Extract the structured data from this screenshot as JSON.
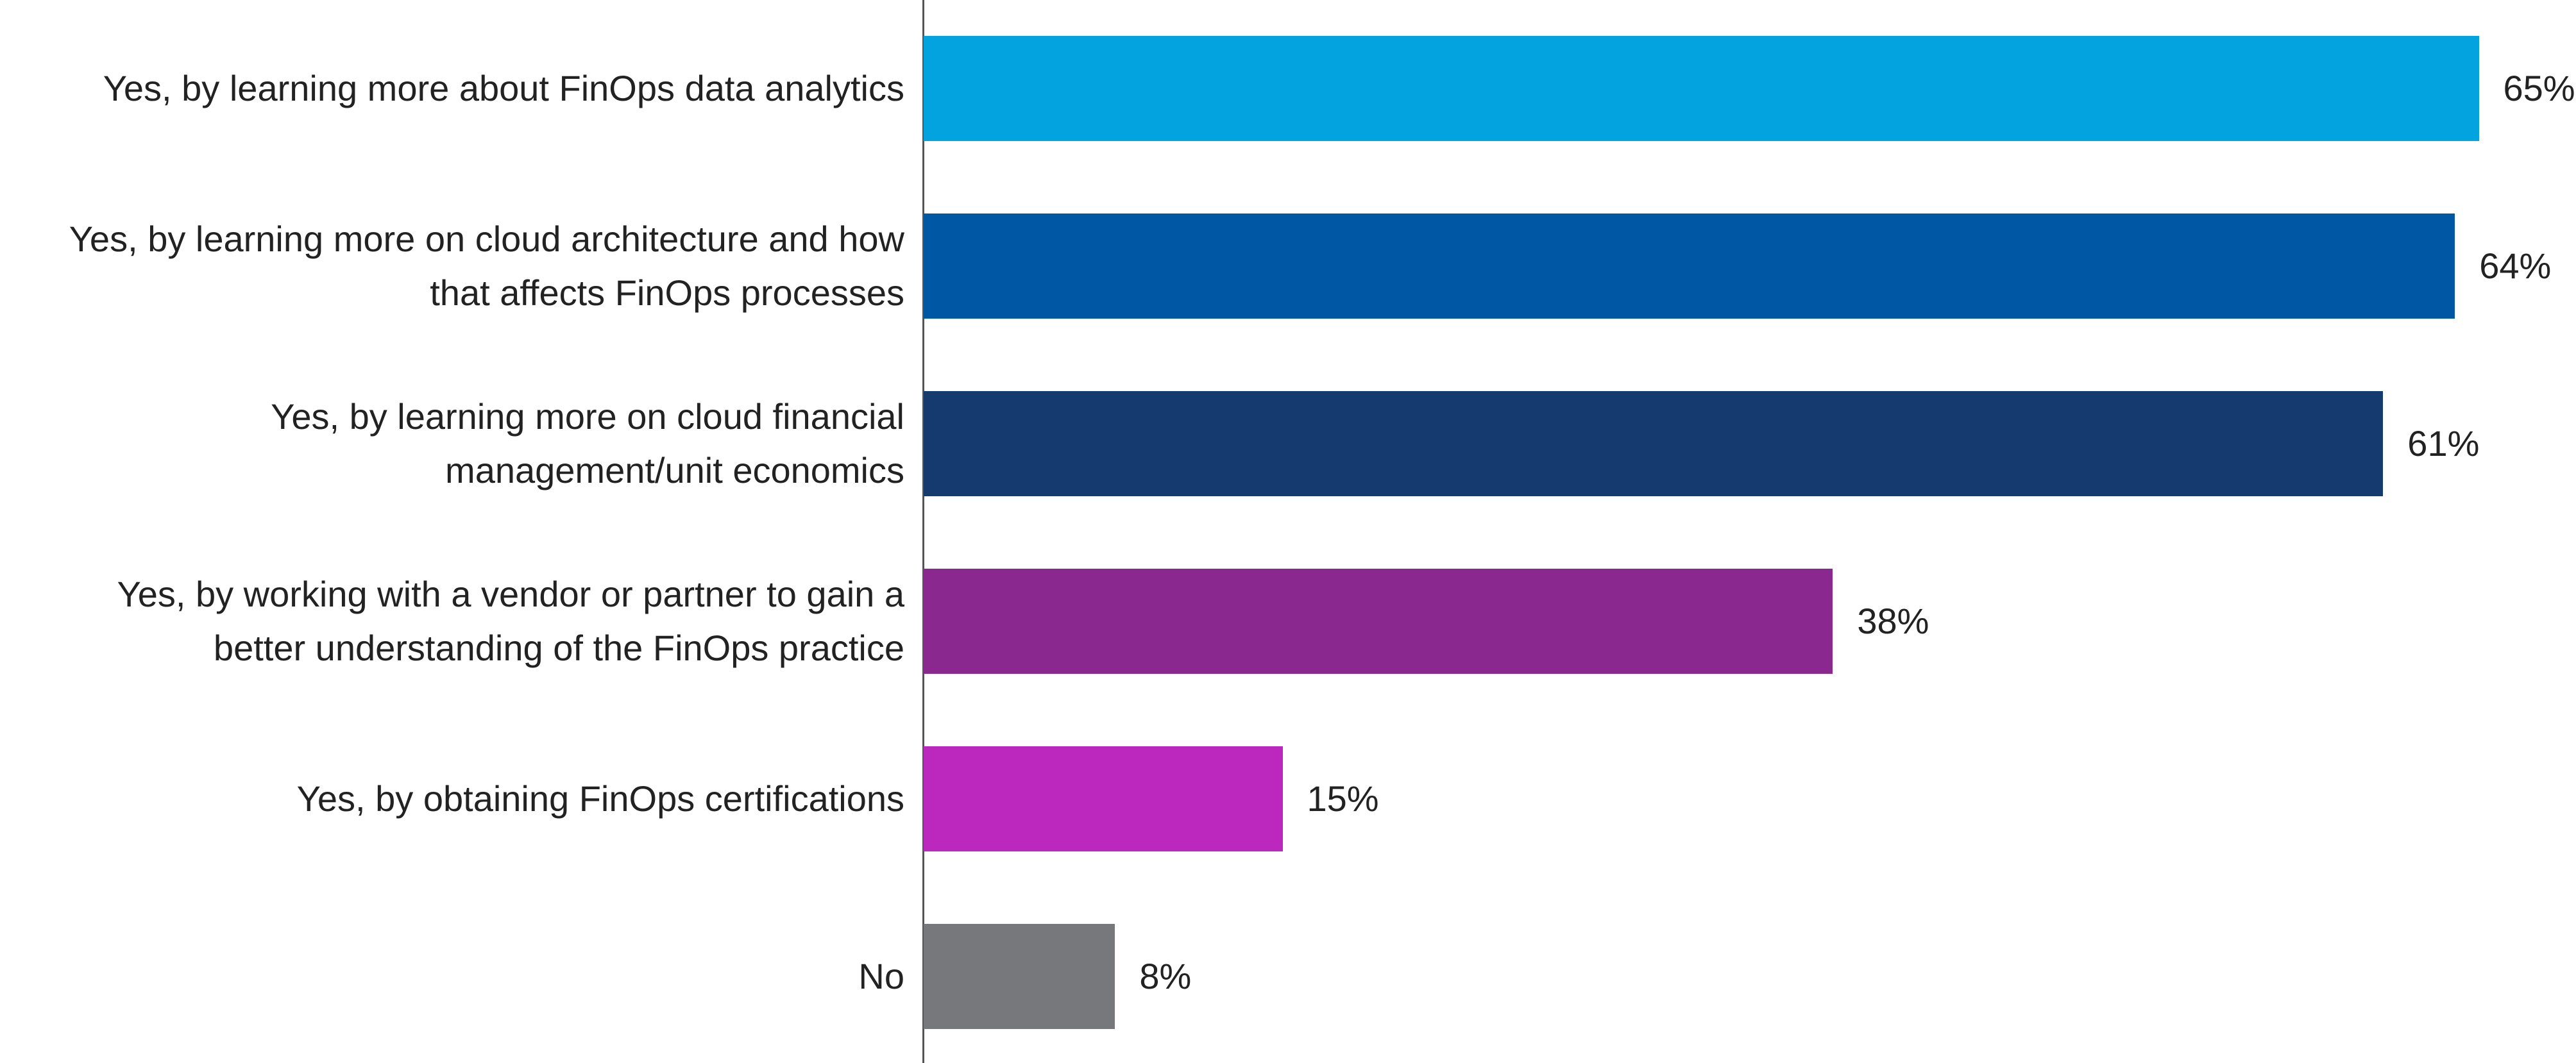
{
  "chart_data": {
    "type": "bar",
    "orientation": "horizontal",
    "categories": [
      "Yes, by learning more about FinOps data analytics",
      "Yes, by learning more on cloud architecture and how\nthat affects FinOps processes",
      "Yes, by learning more on cloud financial\nmanagement/unit economics",
      "Yes, by working with a vendor or partner to gain a\nbetter understanding of the FinOps practice",
      "Yes, by obtaining FinOps certifications",
      "No"
    ],
    "values": [
      65,
      64,
      61,
      38,
      15,
      8
    ],
    "value_labels": [
      "65%",
      "64%",
      "61%",
      "38%",
      "15%",
      "8%"
    ],
    "colors": [
      "#03a3e0",
      "#0057a3",
      "#143a70",
      "#8b2890",
      "#bc28bd",
      "#77787b"
    ]
  }
}
